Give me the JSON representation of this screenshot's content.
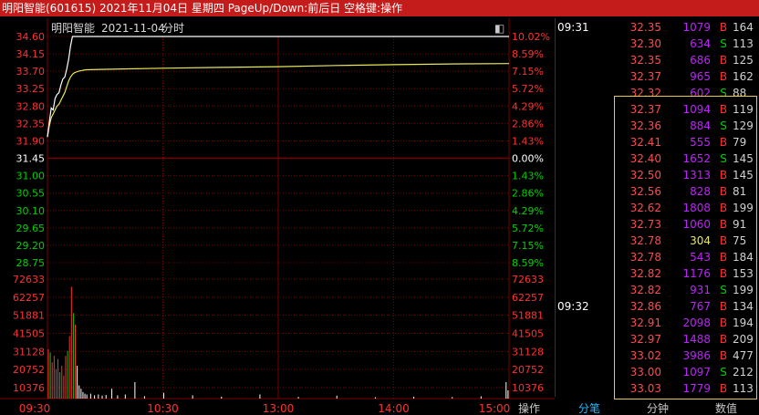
{
  "window": {
    "title": "明阳智能(601615) 2021年11月04日 星期四 PageUp/Down:前后日 空格键:操作"
  },
  "chart_header": {
    "name": "明阳智能",
    "date": "2021-11-04",
    "mode": "分时",
    "toggle_glyph": "◧"
  },
  "colors": {
    "up": "#ff3030",
    "down": "#00d000",
    "neutral": "#ffffff",
    "grid_red": "#7a0000",
    "price_line": "#ffffff",
    "avg_line": "#e8e85a",
    "volume_purple": "#c020ff",
    "highlight_border": "#e6c84a",
    "title_bg": "#c41b1b"
  },
  "chart_data": {
    "type": "line",
    "title": "明阳智能 2021-11-04 分时",
    "prev_close": 31.45,
    "y_price_ticks": [
      "34.60",
      "34.15",
      "33.70",
      "33.25",
      "32.80",
      "32.35",
      "31.90",
      "31.45",
      "31.00",
      "30.55",
      "30.10",
      "29.65",
      "29.20",
      "28.75"
    ],
    "y_pct_ticks": [
      "10.02%",
      "8.59%",
      "7.15%",
      "5.72%",
      "4.29%",
      "2.86%",
      "1.43%",
      "0.00%",
      "1.43%",
      "2.86%",
      "4.29%",
      "5.72%",
      "7.15%",
      "8.59%"
    ],
    "y_volume_ticks": [
      "72633",
      "62257",
      "51881",
      "41505",
      "31128",
      "20752",
      "10376"
    ],
    "x_ticks": [
      "09:30",
      "10:30",
      "13:00",
      "14:00",
      "15:00"
    ],
    "ylim_price": [
      28.75,
      34.6
    ],
    "ylim_volume": [
      0,
      72633
    ],
    "x_minutes": 240,
    "series": [
      {
        "name": "price",
        "x": [
          0,
          1,
          2,
          3,
          4,
          5,
          6,
          7,
          8,
          9,
          10,
          11,
          12,
          13,
          14,
          15,
          16,
          17,
          18,
          19,
          20,
          30,
          60,
          90,
          120,
          150,
          180,
          210,
          240
        ],
        "values": [
          32.0,
          32.4,
          32.75,
          32.7,
          33.0,
          33.1,
          33.15,
          33.35,
          33.5,
          33.55,
          33.75,
          34.0,
          34.35,
          34.6,
          34.6,
          34.6,
          34.6,
          34.6,
          34.6,
          34.6,
          34.6,
          34.6,
          34.6,
          34.6,
          34.6,
          34.6,
          34.6,
          34.6,
          34.6
        ]
      },
      {
        "name": "average",
        "x": [
          0,
          1,
          2,
          3,
          4,
          5,
          6,
          7,
          8,
          9,
          10,
          11,
          12,
          13,
          14,
          15,
          16,
          17,
          18,
          19,
          20,
          30,
          60,
          90,
          120,
          150,
          180,
          210,
          240
        ],
        "values": [
          32.0,
          32.3,
          32.5,
          32.6,
          32.7,
          32.8,
          32.85,
          32.95,
          33.05,
          33.15,
          33.3,
          33.45,
          33.55,
          33.62,
          33.66,
          33.68,
          33.7,
          33.71,
          33.72,
          33.73,
          33.74,
          33.75,
          33.78,
          33.8,
          33.82,
          33.85,
          33.87,
          33.89,
          33.9
        ]
      }
    ],
    "volume": {
      "x": [
        0,
        1,
        2,
        3,
        4,
        5,
        6,
        7,
        8,
        9,
        10,
        11,
        12,
        13,
        14,
        15,
        16,
        17,
        18,
        19,
        20,
        22,
        24,
        26,
        28,
        30,
        33,
        36,
        40,
        45,
        50,
        60,
        75,
        90,
        110,
        130,
        150,
        170,
        190,
        210,
        225,
        238,
        239
      ],
      "values": [
        30000,
        28000,
        22000,
        26000,
        18000,
        24000,
        16000,
        20000,
        14000,
        26000,
        29000,
        38000,
        68000,
        52000,
        45000,
        20000,
        8000,
        6000,
        4000,
        3000,
        2500,
        3000,
        2000,
        2500,
        1800,
        2200,
        6000,
        2000,
        2500,
        10000,
        1500,
        3500,
        2000,
        1200,
        2500,
        1000,
        1800,
        800,
        1200,
        900,
        1400,
        10000,
        5000
      ],
      "colors": [
        "up",
        "down",
        "up",
        "up",
        "up",
        "up",
        "down",
        "up",
        "up",
        "up",
        "down",
        "up",
        "up",
        "down",
        "up",
        "neutral",
        "neutral",
        "neutral",
        "neutral",
        "neutral",
        "neutral",
        "neutral",
        "neutral",
        "neutral",
        "neutral",
        "neutral",
        "neutral",
        "neutral",
        "neutral",
        "neutral",
        "neutral",
        "neutral",
        "neutral",
        "neutral",
        "neutral",
        "neutral",
        "neutral",
        "neutral",
        "neutral",
        "neutral",
        "neutral",
        "neutral",
        "neutral"
      ]
    }
  },
  "trades": [
    {
      "time": "09:31",
      "price": "32.35",
      "vol": "1079",
      "side": "B",
      "count": "164"
    },
    {
      "time": "",
      "price": "32.30",
      "vol": "634",
      "side": "S",
      "count": "113"
    },
    {
      "time": "",
      "price": "32.35",
      "vol": "686",
      "side": "B",
      "count": "125"
    },
    {
      "time": "",
      "price": "32.37",
      "vol": "965",
      "side": "B",
      "count": "162"
    },
    {
      "time": "",
      "price": "32.32",
      "vol": "602",
      "side": "S",
      "count": "88"
    },
    {
      "time": "",
      "price": "32.37",
      "vol": "1094",
      "side": "B",
      "count": "119"
    },
    {
      "time": "",
      "price": "32.36",
      "vol": "884",
      "side": "S",
      "count": "129"
    },
    {
      "time": "",
      "price": "32.41",
      "vol": "555",
      "side": "B",
      "count": "79"
    },
    {
      "time": "",
      "price": "32.40",
      "vol": "1652",
      "side": "S",
      "count": "145"
    },
    {
      "time": "",
      "price": "32.50",
      "vol": "1313",
      "side": "B",
      "count": "145"
    },
    {
      "time": "",
      "price": "32.56",
      "vol": "828",
      "side": "B",
      "count": "81"
    },
    {
      "time": "",
      "price": "32.62",
      "vol": "1808",
      "side": "B",
      "count": "199"
    },
    {
      "time": "",
      "price": "32.73",
      "vol": "1060",
      "side": "B",
      "count": "91"
    },
    {
      "time": "",
      "price": "32.78",
      "vol": "304",
      "side": "B",
      "count": "75"
    },
    {
      "time": "",
      "price": "32.78",
      "vol": "543",
      "side": "B",
      "count": "184"
    },
    {
      "time": "",
      "price": "32.82",
      "vol": "1176",
      "side": "B",
      "count": "153"
    },
    {
      "time": "",
      "price": "32.82",
      "vol": "931",
      "side": "S",
      "count": "199"
    },
    {
      "time": "09:32",
      "price": "32.86",
      "vol": "767",
      "side": "B",
      "count": "134"
    },
    {
      "time": "",
      "price": "32.91",
      "vol": "2098",
      "side": "B",
      "count": "194"
    },
    {
      "time": "",
      "price": "32.97",
      "vol": "1488",
      "side": "B",
      "count": "209"
    },
    {
      "time": "",
      "price": "33.02",
      "vol": "3986",
      "side": "B",
      "count": "477"
    },
    {
      "time": "",
      "price": "33.00",
      "vol": "1097",
      "side": "S",
      "count": "212"
    },
    {
      "time": "",
      "price": "33.03",
      "vol": "1779",
      "side": "B",
      "count": "113"
    }
  ],
  "bottom_tabs": {
    "ops": "操作",
    "tick": "分笔",
    "minute": "分钟",
    "value": "数值"
  }
}
